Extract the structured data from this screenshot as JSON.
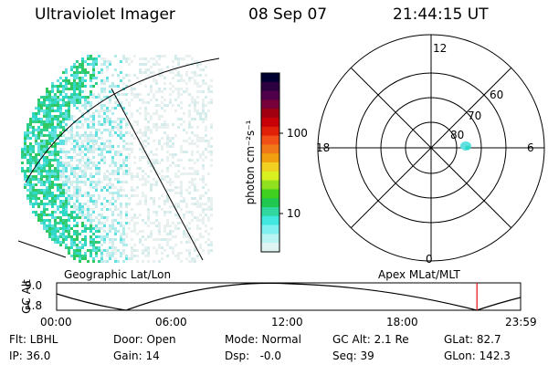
{
  "header": {
    "instrument": "Ultraviolet Imager",
    "date": "08 Sep 07",
    "time": "21:44:15 UT"
  },
  "colorbar": {
    "label": "photon cm⁻²s⁻¹",
    "ticks": [
      "100",
      "10"
    ],
    "colors": [
      "#000030",
      "#2a0040",
      "#50004a",
      "#78003a",
      "#a00010",
      "#c80008",
      "#e02008",
      "#f05018",
      "#f07818",
      "#f0a010",
      "#f0d020",
      "#d8f020",
      "#90e020",
      "#40d020",
      "#20c850",
      "#30d8a0",
      "#40e8e0",
      "#80f0f0",
      "#b8f4f4",
      "#e0f4f4"
    ]
  },
  "polar_grid": {
    "mlt_labels": {
      "top": "12",
      "bottom": "0",
      "left": "18",
      "right": "6"
    },
    "lat_labels": [
      "60",
      "70",
      "80"
    ]
  },
  "map_titles": {
    "left": "Geographic Lat/Lon",
    "right": "Apex MLat/MLT"
  },
  "altitude_plot": {
    "axis_label": "GC Alt",
    "y_ticks": [
      "9.0",
      "1.8"
    ],
    "x_ticks": [
      "00:00",
      "06:00",
      "12:00",
      "18:00",
      "23:59"
    ],
    "current_marker_time_hours": 21.74
  },
  "footer": {
    "row1": {
      "filter": "Flt: LBHL",
      "door": "Door: Open",
      "mode": "Mode: Normal",
      "gc_alt": "GC Alt: 2.1 Re",
      "glat": "GLat: 82.7"
    },
    "row2": {
      "ip": "IP: 36.0",
      "gain": "Gain: 14",
      "dsp": "Dsp:   -0.0",
      "seq": "Seq: 39",
      "glon": "GLon: 142.3"
    }
  },
  "image_palette": [
    "#e8f0f0",
    "#d4ecec",
    "#b0ecec",
    "#60e0e0",
    "#30d8c8",
    "#30d090",
    "#30c860"
  ]
}
